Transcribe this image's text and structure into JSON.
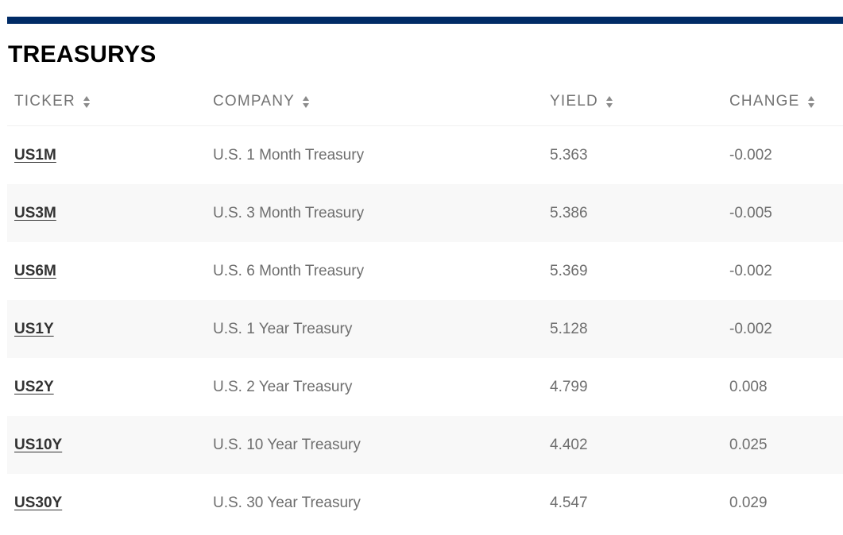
{
  "title": "TREASURYS",
  "columns": [
    {
      "label": "TICKER"
    },
    {
      "label": "COMPANY"
    },
    {
      "label": "YIELD"
    },
    {
      "label": "CHANGE"
    }
  ],
  "rows": [
    {
      "ticker": "US1M",
      "company": "U.S. 1 Month Treasury",
      "yield": "5.363",
      "change": "-0.002"
    },
    {
      "ticker": "US3M",
      "company": "U.S. 3 Month Treasury",
      "yield": "5.386",
      "change": "-0.005"
    },
    {
      "ticker": "US6M",
      "company": "U.S. 6 Month Treasury",
      "yield": "5.369",
      "change": "-0.002"
    },
    {
      "ticker": "US1Y",
      "company": "U.S. 1 Year Treasury",
      "yield": "5.128",
      "change": "-0.002"
    },
    {
      "ticker": "US2Y",
      "company": "U.S. 2 Year Treasury",
      "yield": "4.799",
      "change": "0.008"
    },
    {
      "ticker": "US10Y",
      "company": "U.S. 10 Year Treasury",
      "yield": "4.402",
      "change": "0.025"
    },
    {
      "ticker": "US30Y",
      "company": "U.S. 30 Year Treasury",
      "yield": "4.547",
      "change": "0.029"
    }
  ],
  "colors": {
    "accent_bar": "#002b66",
    "row_alt": "#f8f8f8",
    "text": "#6e6e6e",
    "ticker": "#333333"
  },
  "icons": {
    "sort": "sort-arrows-icon"
  }
}
